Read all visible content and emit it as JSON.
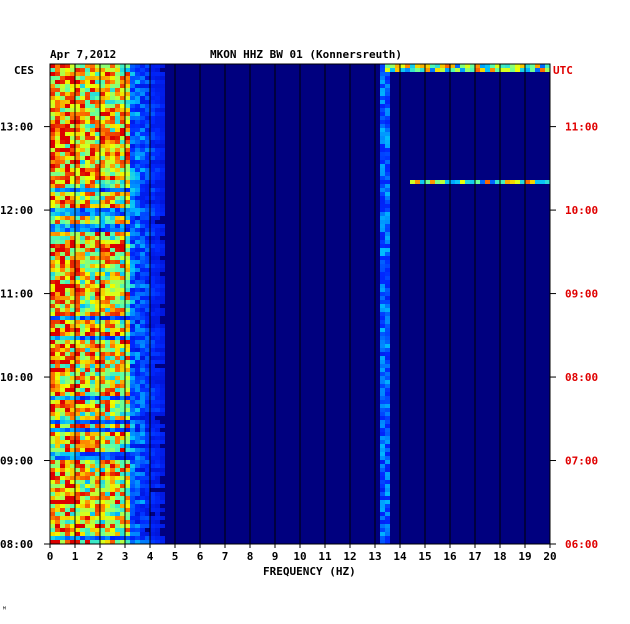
{
  "header": {
    "date": "Apr 7,2012",
    "station": "MKON HHZ BW 01 (Konnersreuth)"
  },
  "axes": {
    "left_tz": "CES",
    "right_tz": "UTC",
    "xlabel": "FREQUENCY (HZ)"
  },
  "footer_mark": "ᴹ",
  "colors": {
    "background": "#00007f",
    "low": "#0000b0",
    "mid": "#00c8ff",
    "high": "#ffff00",
    "peak": "#ff0000",
    "utc_text": "#e00000"
  },
  "chart_data": {
    "type": "heatmap",
    "title": "MKON HHZ BW 01 (Konnersreuth)",
    "date": "Apr 7,2012",
    "xlabel": "FREQUENCY (HZ)",
    "xlim": [
      0,
      20
    ],
    "x_ticks": [
      "0",
      "1",
      "2",
      "3",
      "4",
      "5",
      "6",
      "7",
      "8",
      "9",
      "10",
      "11",
      "12",
      "13",
      "14",
      "15",
      "16",
      "17",
      "18",
      "19",
      "20"
    ],
    "y_ticks_left": [
      "13:00",
      "12:00",
      "11:00",
      "10:00",
      "09:00",
      "08:00"
    ],
    "y_ticks_right": [
      "11:00",
      "10:00",
      "09:00",
      "08:00",
      "07:00",
      "06:00"
    ],
    "y_range_ces": [
      "08:00",
      "13:45"
    ],
    "notes": [
      {
        "freq_range": [
          0,
          3.2
        ],
        "intensity": "high",
        "desc": "broadband energy"
      },
      {
        "freq": 13.5,
        "intensity": "medium",
        "desc": "persistent spectral line"
      },
      {
        "freq_range": [
          14.5,
          20
        ],
        "time_ces": "12:20",
        "intensity": "high",
        "desc": "horizontal event"
      },
      {
        "freq_range": [
          13.5,
          20
        ],
        "time_ces": "13:42",
        "intensity": "high",
        "desc": "horizontal event"
      }
    ]
  }
}
